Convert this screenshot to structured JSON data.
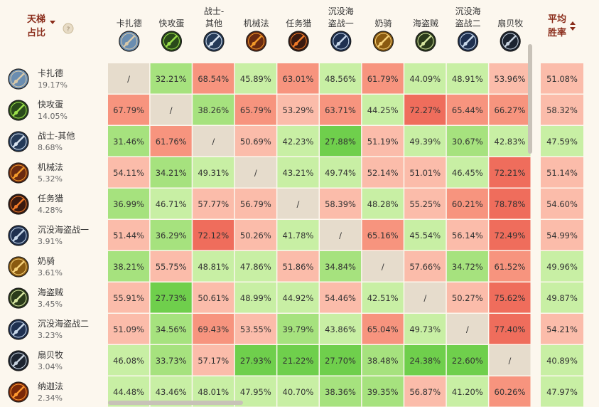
{
  "header": {
    "left_title_line1": "天梯",
    "left_title_line2": "占比",
    "right_title_line1": "平均",
    "right_title_line2": "胜率",
    "help_icon": "question-circle-icon",
    "sort_down_icon": "caret-down-icon",
    "sort_both_icon": "sort-both-icon"
  },
  "colors": {
    "background": "#fcf7ee",
    "diagonal": "#e6dccc",
    "title": "#8a2c1a",
    "very_good": "#6fcf4c",
    "good": "#a6e27e",
    "fair_good": "#c8efa4",
    "fair_bad": "#fbbcaa",
    "bad": "#f7947e",
    "very_bad": "#ef6d5c"
  },
  "chart_data": {
    "type": "heatmap",
    "columns": [
      {
        "line1": "卡扎德",
        "line2": "",
        "icon": "kazakus-icon"
      },
      {
        "line1": "快攻蛋",
        "line2": "",
        "icon": "aggro-egg-icon"
      },
      {
        "line1": "战士-",
        "line2": "其他",
        "icon": "warrior-sword-icon"
      },
      {
        "line1": "机械法",
        "line2": "",
        "icon": "mech-mage-icon"
      },
      {
        "line1": "任务猎",
        "line2": "",
        "icon": "quest-hunter-icon"
      },
      {
        "line1": "沉没海",
        "line2": "盗战一",
        "icon": "pirate-warrior-sword-icon"
      },
      {
        "line1": "奶骑",
        "line2": "",
        "icon": "holy-paladin-icon"
      },
      {
        "line1": "海盗贼",
        "line2": "",
        "icon": "pirate-rogue-icon"
      },
      {
        "line1": "沉没海",
        "line2": "盗战二",
        "icon": "pirate-warrior-sword-icon"
      },
      {
        "line1": "扇贝牧",
        "line2": "",
        "icon": "shell-priest-icon"
      }
    ],
    "rows": [
      {
        "name": "卡扎德",
        "share": "19.17%",
        "icon": "kazakus-icon",
        "values": [
          "/",
          "32.21%",
          "68.54%",
          "45.89%",
          "63.01%",
          "48.56%",
          "61.79%",
          "44.09%",
          "48.91%",
          "53.96%"
        ],
        "avg": "51.08%"
      },
      {
        "name": "快攻蛋",
        "share": "14.05%",
        "icon": "aggro-egg-icon",
        "values": [
          "67.79%",
          "/",
          "38.26%",
          "65.79%",
          "53.29%",
          "63.71%",
          "44.25%",
          "72.27%",
          "65.44%",
          "66.27%"
        ],
        "avg": "58.32%"
      },
      {
        "name": "战士-其他",
        "share": "8.68%",
        "icon": "warrior-sword-icon",
        "values": [
          "31.46%",
          "61.76%",
          "/",
          "50.69%",
          "42.23%",
          "27.88%",
          "51.19%",
          "49.39%",
          "30.67%",
          "42.83%"
        ],
        "avg": "47.59%"
      },
      {
        "name": "机械法",
        "share": "5.32%",
        "icon": "mech-mage-icon",
        "values": [
          "54.11%",
          "34.21%",
          "49.31%",
          "/",
          "43.21%",
          "49.74%",
          "52.14%",
          "51.01%",
          "46.45%",
          "72.21%"
        ],
        "avg": "51.14%"
      },
      {
        "name": "任务猎",
        "share": "4.28%",
        "icon": "quest-hunter-icon",
        "values": [
          "36.99%",
          "46.71%",
          "57.77%",
          "56.79%",
          "/",
          "58.39%",
          "48.28%",
          "55.25%",
          "60.21%",
          "78.78%"
        ],
        "avg": "54.60%"
      },
      {
        "name": "沉没海盗战一",
        "share": "3.91%",
        "icon": "pirate-warrior-sword-icon",
        "values": [
          "51.44%",
          "36.29%",
          "72.12%",
          "50.26%",
          "41.78%",
          "/",
          "65.16%",
          "45.54%",
          "56.14%",
          "72.49%"
        ],
        "avg": "54.99%"
      },
      {
        "name": "奶骑",
        "share": "3.61%",
        "icon": "holy-paladin-icon",
        "values": [
          "38.21%",
          "55.75%",
          "48.81%",
          "47.86%",
          "51.86%",
          "34.84%",
          "/",
          "57.66%",
          "34.72%",
          "61.52%"
        ],
        "avg": "49.96%"
      },
      {
        "name": "海盗贼",
        "share": "3.45%",
        "icon": "pirate-rogue-icon",
        "values": [
          "55.91%",
          "27.73%",
          "50.61%",
          "48.99%",
          "44.92%",
          "54.46%",
          "42.51%",
          "/",
          "50.27%",
          "75.62%"
        ],
        "avg": "49.87%"
      },
      {
        "name": "沉没海盗战二",
        "share": "3.23%",
        "icon": "pirate-warrior-sword-icon",
        "values": [
          "51.09%",
          "34.56%",
          "69.43%",
          "53.55%",
          "39.79%",
          "43.86%",
          "65.04%",
          "49.73%",
          "/",
          "77.40%"
        ],
        "avg": "54.21%"
      },
      {
        "name": "扇贝牧",
        "share": "3.04%",
        "icon": "shell-priest-icon",
        "values": [
          "46.08%",
          "33.73%",
          "57.17%",
          "27.93%",
          "21.22%",
          "27.70%",
          "38.48%",
          "24.38%",
          "22.60%",
          "/"
        ],
        "avg": "40.89%"
      },
      {
        "name": "纳迦法",
        "share": "2.34%",
        "icon": "naga-mage-icon",
        "values": [
          "44.48%",
          "43.46%",
          "48.01%",
          "47.95%",
          "40.70%",
          "38.36%",
          "39.35%",
          "56.87%",
          "41.20%",
          "60.26%"
        ],
        "avg": "47.97%"
      }
    ]
  }
}
